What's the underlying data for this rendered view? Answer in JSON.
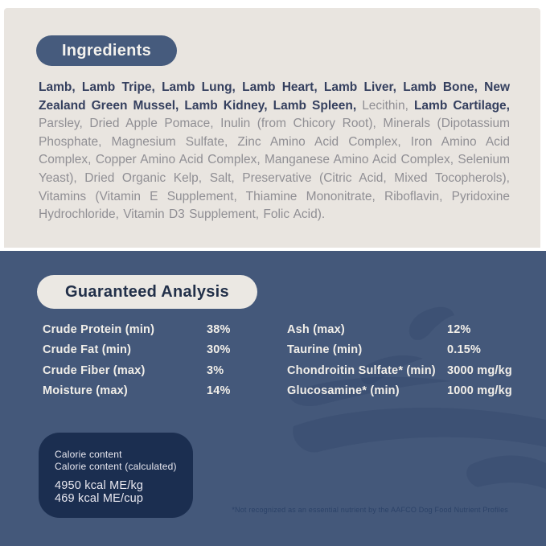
{
  "colors": {
    "cream_background": "#e9e5e0",
    "slate_blue_background": "#44587a",
    "dark_pill": "#465b7d",
    "calorie_box": "#1b2e50",
    "bold_ingredient_text": "#343f5e",
    "regular_ingredient_text": "#908f94",
    "analysis_text": "#f2efe9"
  },
  "ingredients": {
    "title": "Ingredients",
    "segments": [
      {
        "bold": true,
        "text": "Lamb, Lamb Tripe, Lamb Lung, Lamb Heart, Lamb Liver, Lamb Bone, New Zealand Green Mussel, Lamb Kidney, Lamb Spleen, "
      },
      {
        "bold": false,
        "text": "Lecithin, "
      },
      {
        "bold": true,
        "text": "Lamb Cartilage, "
      },
      {
        "bold": false,
        "text": "Parsley, Dried Apple Pomace, Inulin (from Chicory Root), Minerals (Dipotassium Phosphate, Magnesium Sulfate, Zinc Amino Acid Complex, Iron Amino Acid Complex, Copper Amino Acid Complex, Manganese Amino Acid Complex, Selenium Yeast), Dried Organic Kelp, Salt, Preservative (Citric Acid, Mixed Tocopherols), Vitamins (Vitamin E Supplement, Thiamine Mononitrate, Riboflavin, Pyridoxine Hydrochloride, Vitamin D3 Supplement, Folic Acid)."
      }
    ]
  },
  "guaranteed_analysis": {
    "title": "Guaranteed Analysis",
    "left_rows": [
      {
        "label": "Crude Protein (min)",
        "value": "38%"
      },
      {
        "label": "Crude Fat (min)",
        "value": "30%"
      },
      {
        "label": "Crude Fiber (max)",
        "value": "3%"
      },
      {
        "label": "Moisture (max)",
        "value": "14%"
      }
    ],
    "right_rows": [
      {
        "label": "Ash (max)",
        "value": "12%"
      },
      {
        "label": "Taurine (min)",
        "value": "0.15%"
      },
      {
        "label": "Chondroitin Sulfate* (min)",
        "value": "3000 mg/kg"
      },
      {
        "label": "Glucosamine* (min)",
        "value": "1000 mg/kg"
      }
    ]
  },
  "calorie_box": {
    "line1": "Calorie content",
    "line2": "Calorie content (calculated)",
    "line3": "4950 kcal ME/kg",
    "line4": "469 kcal ME/cup"
  },
  "footnote": "*Not recognized as an essential nutrient by the AAFCO Dog Food Nutrient Profiles"
}
